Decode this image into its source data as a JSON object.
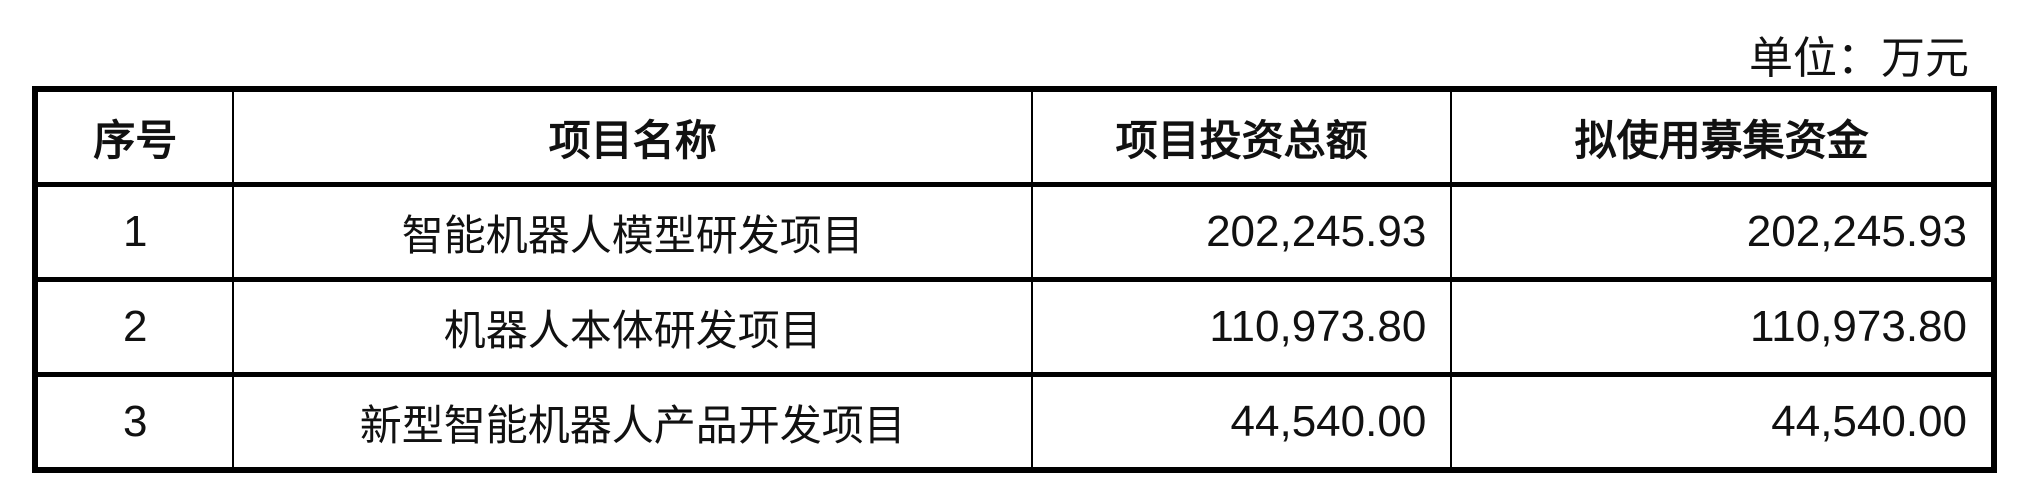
{
  "unit_label": "单位：万元",
  "table": {
    "headers": [
      "序号",
      "项目名称",
      "项目投资总额",
      "拟使用募集资金"
    ],
    "rows": [
      [
        "1",
        "智能机器人模型研发项目",
        "202,245.93",
        "202,245.93"
      ],
      [
        "2",
        "机器人本体研发项目",
        "110,973.80",
        "110,973.80"
      ],
      [
        "3",
        "新型智能机器人产品开发项目",
        "44,540.00",
        "44,540.00"
      ]
    ]
  }
}
